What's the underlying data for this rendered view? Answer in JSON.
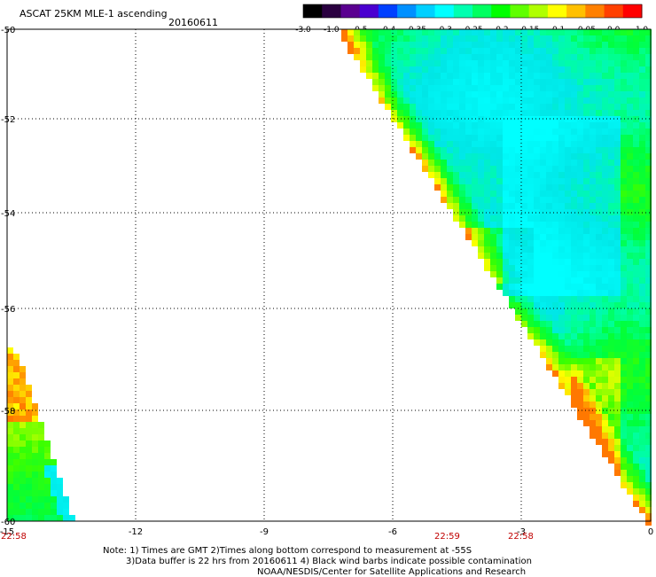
{
  "header": {
    "title": "ASCAT 25KM MLE-1 ascending",
    "date": "20160611"
  },
  "colorbar": {
    "labels": [
      "-3.0",
      "-1.0",
      "-0.5",
      "-0.4",
      "-0.35",
      "-0.3",
      "-0.25",
      "-0.2",
      "-0.15",
      "-0.1",
      "-0.05",
      "0.0",
      "1.0"
    ],
    "colors": [
      "#000000",
      "#2a0040",
      "#5a0090",
      "#4a00d0",
      "#0040ff",
      "#0090ff",
      "#00d0ff",
      "#00ffff",
      "#00ffb0",
      "#00ff60",
      "#00ff00",
      "#60ff00",
      "#b0ff00",
      "#ffff00",
      "#ffc000",
      "#ff8000",
      "#ff4000",
      "#ff0000"
    ]
  },
  "map": {
    "lon_labels": [
      "-15",
      "-12",
      "-9",
      "-6",
      "-3",
      "0"
    ],
    "lat_labels": [
      "-50",
      "-52",
      "-54",
      "-56",
      "-58",
      "-60"
    ],
    "time_labels": [
      "22:58",
      "22:59",
      "22:58"
    ]
  },
  "notes": {
    "line1": "Note: 1) Times are GMT 2)Times along bottom correspond to measurement at -55S",
    "line2": "3)Data buffer is 22 hrs from 20160611 4) Black wind barbs indicate possible contamination",
    "line3": "NOAA/NESDIS/Center for Satellite Applications and Research"
  }
}
